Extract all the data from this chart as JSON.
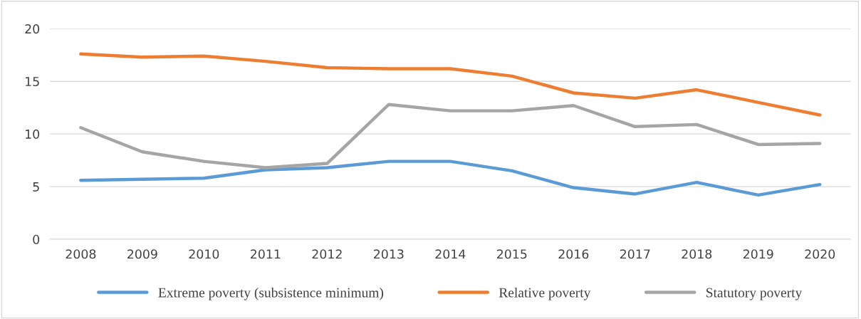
{
  "chart_data": {
    "type": "line",
    "categories": [
      "2008",
      "2009",
      "2010",
      "2011",
      "2012",
      "2013",
      "2014",
      "2015",
      "2016",
      "2017",
      "2018",
      "2019",
      "2020"
    ],
    "series": [
      {
        "name": "Extreme poverty (subsistence minimum)",
        "color": "#5b9bd5",
        "values": [
          5.6,
          5.7,
          5.8,
          6.6,
          6.8,
          7.4,
          7.4,
          6.5,
          4.9,
          4.3,
          5.4,
          4.2,
          5.2
        ]
      },
      {
        "name": "Relative poverty",
        "color": "#ed7d31",
        "values": [
          17.6,
          17.3,
          17.4,
          16.9,
          16.3,
          16.2,
          16.2,
          15.5,
          13.9,
          13.4,
          14.2,
          13.0,
          11.8
        ]
      },
      {
        "name": "Statutory poverty",
        "color": "#a5a5a5",
        "values": [
          10.6,
          8.3,
          7.4,
          6.8,
          7.2,
          12.8,
          12.2,
          12.2,
          12.7,
          10.7,
          10.9,
          9.0,
          9.1
        ]
      }
    ],
    "ylim": [
      0,
      20
    ],
    "yticks": [
      0,
      5,
      10,
      15,
      20
    ],
    "grid": "y",
    "legend": "bottom",
    "marker": "none",
    "line_style": "solid"
  }
}
